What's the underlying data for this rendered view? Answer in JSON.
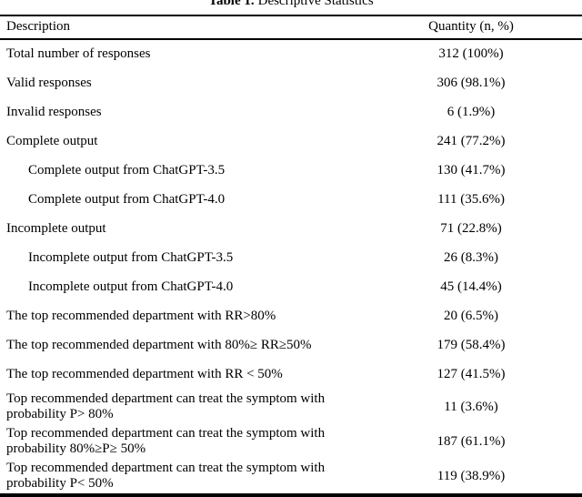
{
  "title": {
    "label": "Table 1.",
    "text": "Descriptive Statistics"
  },
  "table": {
    "columns": [
      "Description",
      "Quantity (n, %)"
    ],
    "rows": [
      {
        "description": "Total number of responses",
        "quantity": "312 (100%)",
        "indent": false,
        "twoline": false
      },
      {
        "description": "Valid responses",
        "quantity": "306 (98.1%)",
        "indent": false,
        "twoline": false
      },
      {
        "description": "Invalid responses",
        "quantity": "6 (1.9%)",
        "indent": false,
        "twoline": false
      },
      {
        "description": "Complete output",
        "quantity": "241 (77.2%)",
        "indent": false,
        "twoline": false
      },
      {
        "description": "Complete output from ChatGPT-3.5",
        "quantity": "130 (41.7%)",
        "indent": true,
        "twoline": false
      },
      {
        "description": "Complete output from ChatGPT-4.0",
        "quantity": "111 (35.6%)",
        "indent": true,
        "twoline": false
      },
      {
        "description": "Incomplete output",
        "quantity": "71 (22.8%)",
        "indent": false,
        "twoline": false
      },
      {
        "description": "Incomplete output from ChatGPT-3.5",
        "quantity": "26 (8.3%)",
        "indent": true,
        "twoline": false
      },
      {
        "description": "Incomplete output from ChatGPT-4.0",
        "quantity": "45 (14.4%)",
        "indent": true,
        "twoline": false
      },
      {
        "description": "The top recommended department with RR>80%",
        "quantity": "20 (6.5%)",
        "indent": false,
        "twoline": false
      },
      {
        "description": "The top recommended department with 80%≥ RR≥50%",
        "quantity": "179 (58.4%)",
        "indent": false,
        "twoline": false
      },
      {
        "description": "The top recommended department with RR < 50%",
        "quantity": "127 (41.5%)",
        "indent": false,
        "twoline": false
      },
      {
        "description": "Top recommended department can treat the symptom with probability P> 80%",
        "quantity": "11 (3.6%)",
        "indent": false,
        "twoline": true
      },
      {
        "description": "Top recommended department can treat the symptom with probability 80%≥P≥ 50%",
        "quantity": "187 (61.1%)",
        "indent": false,
        "twoline": true
      },
      {
        "description": "Top recommended department can treat the symptom with probability P< 50%",
        "quantity": "119 (38.9%)",
        "indent": false,
        "twoline": true
      }
    ]
  },
  "colors": {
    "text": "#000000",
    "background": "#ffffff",
    "rule": "#000000"
  }
}
